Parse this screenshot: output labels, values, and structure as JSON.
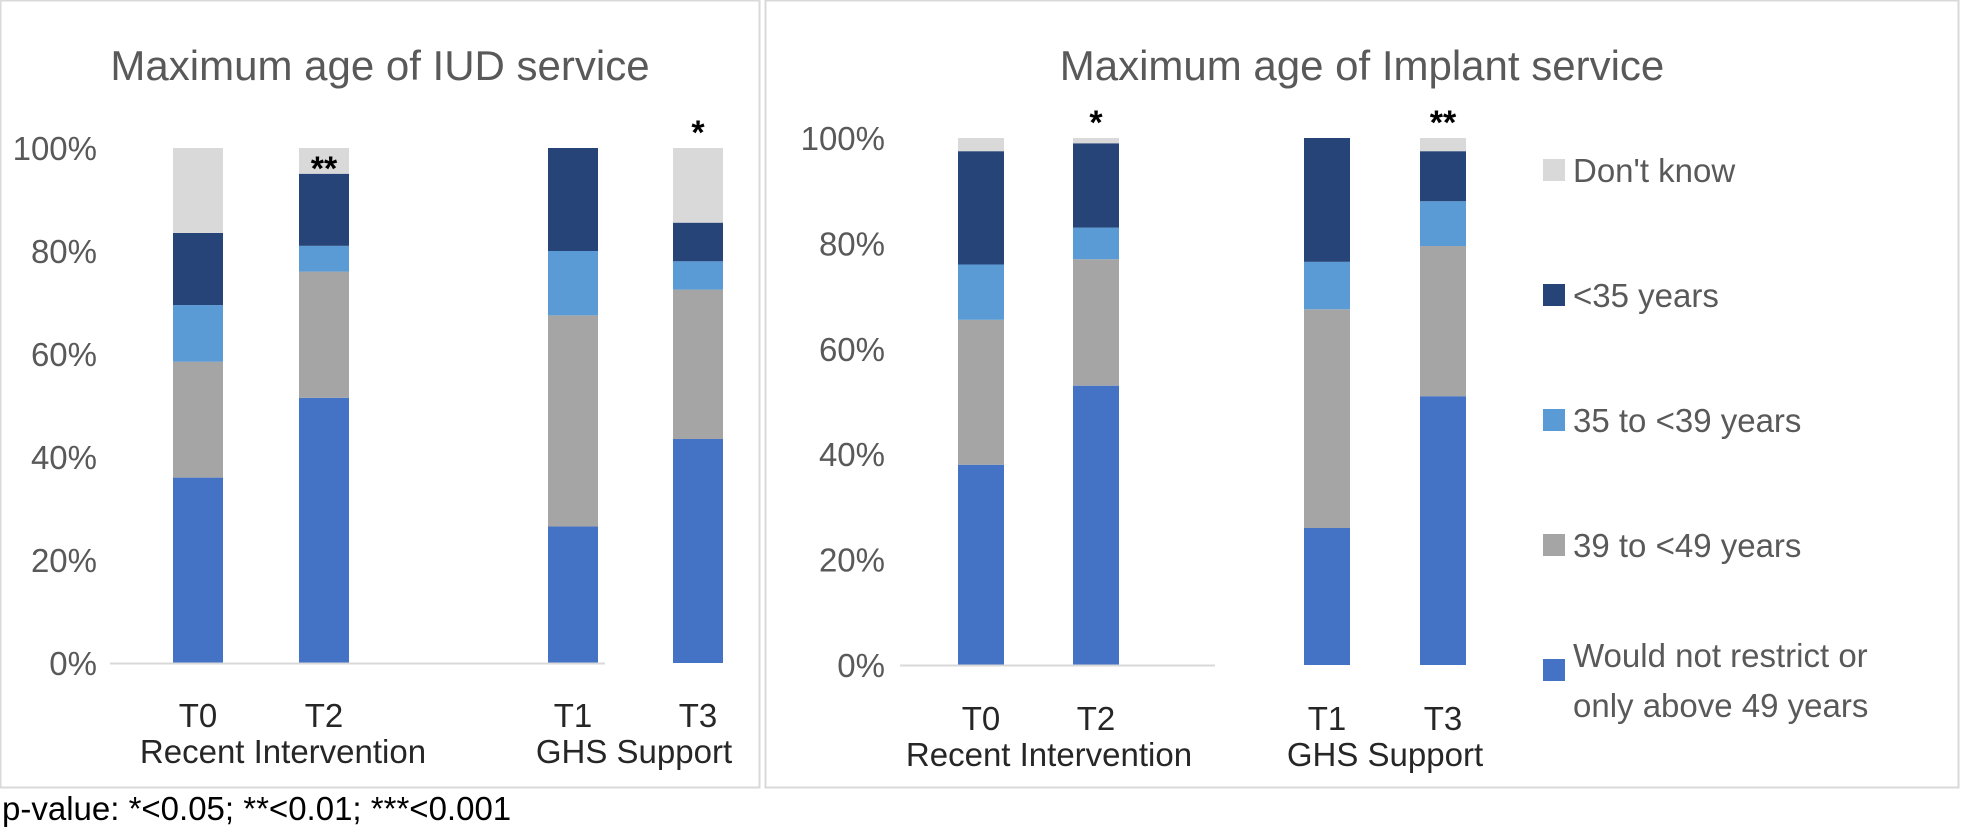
{
  "chart_data": [
    {
      "type": "bar",
      "stacked": true,
      "title": "Maximum age of IUD service",
      "ylim": [
        0,
        100
      ],
      "yticks": [
        "0%",
        "20%",
        "40%",
        "60%",
        "80%",
        "100%"
      ],
      "categories": [
        "T0",
        "T2",
        "T1",
        "T3"
      ],
      "groups": [
        "Recent Intervention",
        "GHS Support"
      ],
      "series": [
        {
          "name": "Would not restrict or only above 49 years",
          "values": [
            36,
            51.5,
            26.5,
            43.5
          ]
        },
        {
          "name": "39 to <49 years",
          "values": [
            22.5,
            24.5,
            41,
            29
          ]
        },
        {
          "name": "35 to <39 years",
          "values": [
            11,
            5,
            12.5,
            5.5
          ]
        },
        {
          "name": "<35 years",
          "values": [
            14,
            14,
            20,
            7.5
          ]
        },
        {
          "name": "Don't know",
          "values": [
            16.5,
            5,
            0,
            14.5
          ]
        }
      ],
      "significance": [
        "",
        "**",
        "",
        "*"
      ]
    },
    {
      "type": "bar",
      "stacked": true,
      "title": "Maximum age of Implant service",
      "ylim": [
        0,
        100
      ],
      "yticks": [
        "0%",
        "20%",
        "40%",
        "60%",
        "80%",
        "100%"
      ],
      "categories": [
        "T0",
        "T2",
        "T1",
        "T3"
      ],
      "groups": [
        "Recent Intervention",
        "GHS Support"
      ],
      "series": [
        {
          "name": "Would not restrict or only above 49 years",
          "values": [
            38,
            53,
            26,
            51
          ]
        },
        {
          "name": "39 to <49 years",
          "values": [
            27.5,
            24,
            41.5,
            28.5
          ]
        },
        {
          "name": "35 to <39 years",
          "values": [
            10.5,
            6,
            9,
            8.5
          ]
        },
        {
          "name": "<35 years",
          "values": [
            21.5,
            16,
            23.5,
            9.5
          ]
        },
        {
          "name": "Don't know",
          "values": [
            2.5,
            1,
            0,
            2.5
          ]
        }
      ],
      "significance": [
        "",
        "*",
        "",
        "**"
      ]
    }
  ],
  "legend": [
    {
      "label": "Don't know",
      "color": "#d9d9d9"
    },
    {
      "label": "<35 years",
      "color": "#264478"
    },
    {
      "label": "35 to <39 years",
      "color": "#5b9bd5"
    },
    {
      "label": "39 to <49 years",
      "color": "#a5a5a5"
    },
    {
      "label": "Would not restrict or only above 49 years",
      "color": "#4472c4"
    }
  ],
  "colors": {
    "Would not restrict or only above 49 years": "#4472c4",
    "39 to <49 years": "#a5a5a5",
    "35 to <39 years": "#5b9bd5",
    "<35 years": "#264478",
    "Don't know": "#d9d9d9",
    "text": "#595959",
    "axis": "#d9d9d9"
  },
  "footnote": "p-value: *<0.05; **<0.01; ***<0.001"
}
